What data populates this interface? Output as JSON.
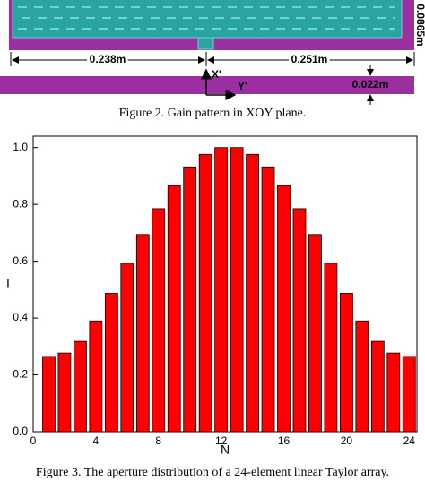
{
  "figure2": {
    "dim_left": "0.238m",
    "dim_right": "0.251m",
    "dim_thickness": "0.022m",
    "dim_height": "0.0865m",
    "axis_x": "X'",
    "axis_y": "Y'",
    "caption": "Figure 2. Gain pattern in XOY plane."
  },
  "chart_data": {
    "type": "bar",
    "x_label": "N",
    "y_label": "I",
    "x": [
      1,
      2,
      3,
      4,
      5,
      6,
      7,
      8,
      9,
      10,
      11,
      12,
      13,
      14,
      15,
      16,
      17,
      18,
      19,
      20,
      21,
      22,
      23,
      24
    ],
    "values": [
      0.265,
      0.277,
      0.318,
      0.39,
      0.487,
      0.593,
      0.694,
      0.785,
      0.866,
      0.932,
      0.976,
      1.0,
      1.0,
      0.976,
      0.932,
      0.866,
      0.785,
      0.694,
      0.593,
      0.487,
      0.39,
      0.318,
      0.277,
      0.265
    ],
    "color": "#ff0000",
    "xlim": [
      0,
      24.5
    ],
    "xticks": [
      0,
      4,
      8,
      12,
      16,
      20,
      24
    ],
    "ylim": [
      0,
      1.04
    ],
    "yticks": [
      {
        "value": 0,
        "label": "0.0"
      },
      0.2,
      0.4,
      0.6,
      0.8,
      {
        "value": 1,
        "label": "1.0"
      }
    ]
  },
  "caption": "Figure 3. The aperture distribution of a 24-element linear Taylor array."
}
